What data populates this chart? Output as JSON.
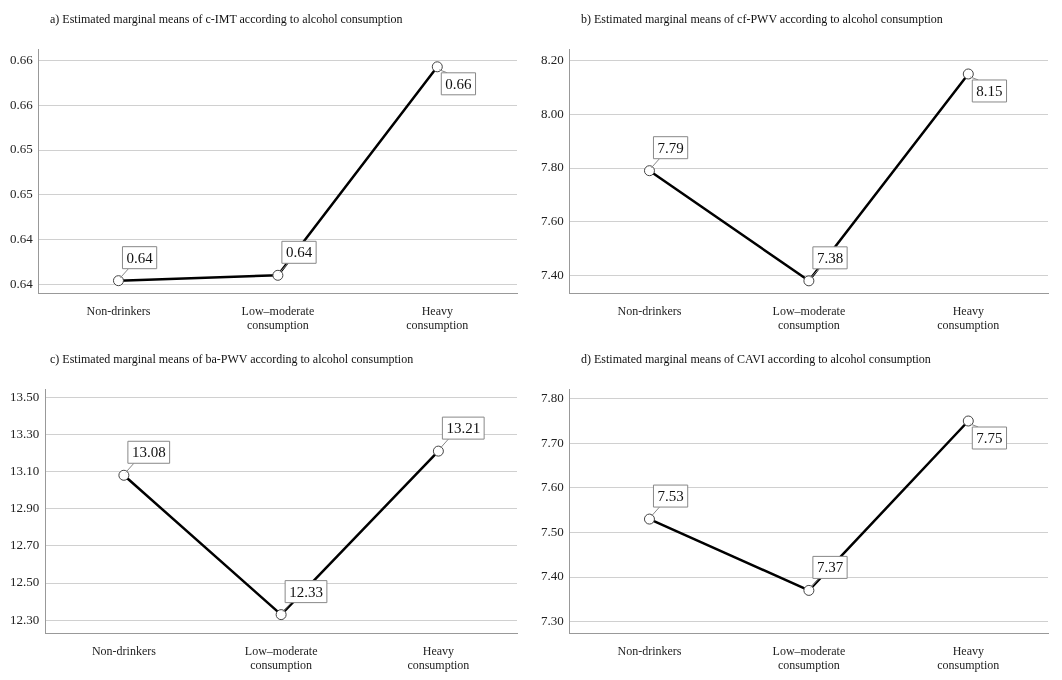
{
  "chart_data": [
    {
      "type": "line",
      "title": "a) Estimated marginal means of c-IMT according to alcohol consumption",
      "categories": [
        "Non-drinkers",
        "Low–moderate consumption",
        "Heavy consumption"
      ],
      "color": "#000000",
      "marker": "circle",
      "grid": "y",
      "values": [
        0.6379,
        0.6385,
        0.6618
      ],
      "value_labels": [
        "0.64",
        "0.64",
        "0.66"
      ],
      "ylim": [
        0.6365,
        0.6637
      ],
      "yticks": [
        {
          "value": 0.6375,
          "label": "0.64"
        },
        {
          "value": 0.6425,
          "label": "0.64"
        },
        {
          "value": 0.6475,
          "label": "0.65"
        },
        {
          "value": 0.6525,
          "label": "0.65"
        },
        {
          "value": 0.6575,
          "label": "0.66"
        },
        {
          "value": 0.6625,
          "label": "0.66"
        }
      ]
    },
    {
      "type": "line",
      "title": "b) Estimated marginal means of cf-PWV according to alcohol consumption",
      "categories": [
        "Non-drinkers",
        "Low–moderate consumption",
        "Heavy consumption"
      ],
      "color": "#000000",
      "marker": "circle",
      "grid": "y",
      "values": [
        7.79,
        7.38,
        8.15
      ],
      "data_labels": true,
      "ylim": [
        7.334,
        8.24
      ],
      "yticks": [
        {
          "value": 7.4,
          "label": "7.40"
        },
        {
          "value": 7.6,
          "label": "7.60"
        },
        {
          "value": 7.8,
          "label": "7.80"
        },
        {
          "value": 8.0,
          "label": "8.00"
        },
        {
          "value": 8.2,
          "label": "8.20"
        }
      ]
    },
    {
      "type": "line",
      "title": "c) Estimated marginal means of ba-PWV according to alcohol consumption",
      "categories": [
        "Non-drinkers",
        "Low–moderate consumption",
        "Heavy consumption"
      ],
      "color": "#000000",
      "marker": "circle",
      "grid": "y",
      "values": [
        13.08,
        12.33,
        13.21
      ],
      "data_labels": true,
      "ylim": [
        12.23,
        13.54
      ],
      "yticks": [
        {
          "value": 12.3,
          "label": "12.30"
        },
        {
          "value": 12.5,
          "label": "12.50"
        },
        {
          "value": 12.7,
          "label": "12.70"
        },
        {
          "value": 12.9,
          "label": "12.90"
        },
        {
          "value": 13.1,
          "label": "13.10"
        },
        {
          "value": 13.3,
          "label": "13.30"
        },
        {
          "value": 13.5,
          "label": "13.50"
        }
      ]
    },
    {
      "type": "line",
      "title": "d)  Estimated marginal means of CAVI according to alcohol consumption",
      "categories": [
        "Non-drinkers",
        "Low–moderate consumption",
        "Heavy consumption"
      ],
      "color": "#000000",
      "marker": "circle",
      "grid": "y",
      "values": [
        7.53,
        7.37,
        7.75
      ],
      "data_labels": true,
      "ylim": [
        7.274,
        7.82
      ],
      "yticks": [
        {
          "value": 7.3,
          "label": "7.30"
        },
        {
          "value": 7.4,
          "label": "7.40"
        },
        {
          "value": 7.5,
          "label": "7.50"
        },
        {
          "value": 7.6,
          "label": "7.60"
        },
        {
          "value": 7.7,
          "label": "7.70"
        },
        {
          "value": 7.8,
          "label": "7.80"
        }
      ]
    }
  ]
}
